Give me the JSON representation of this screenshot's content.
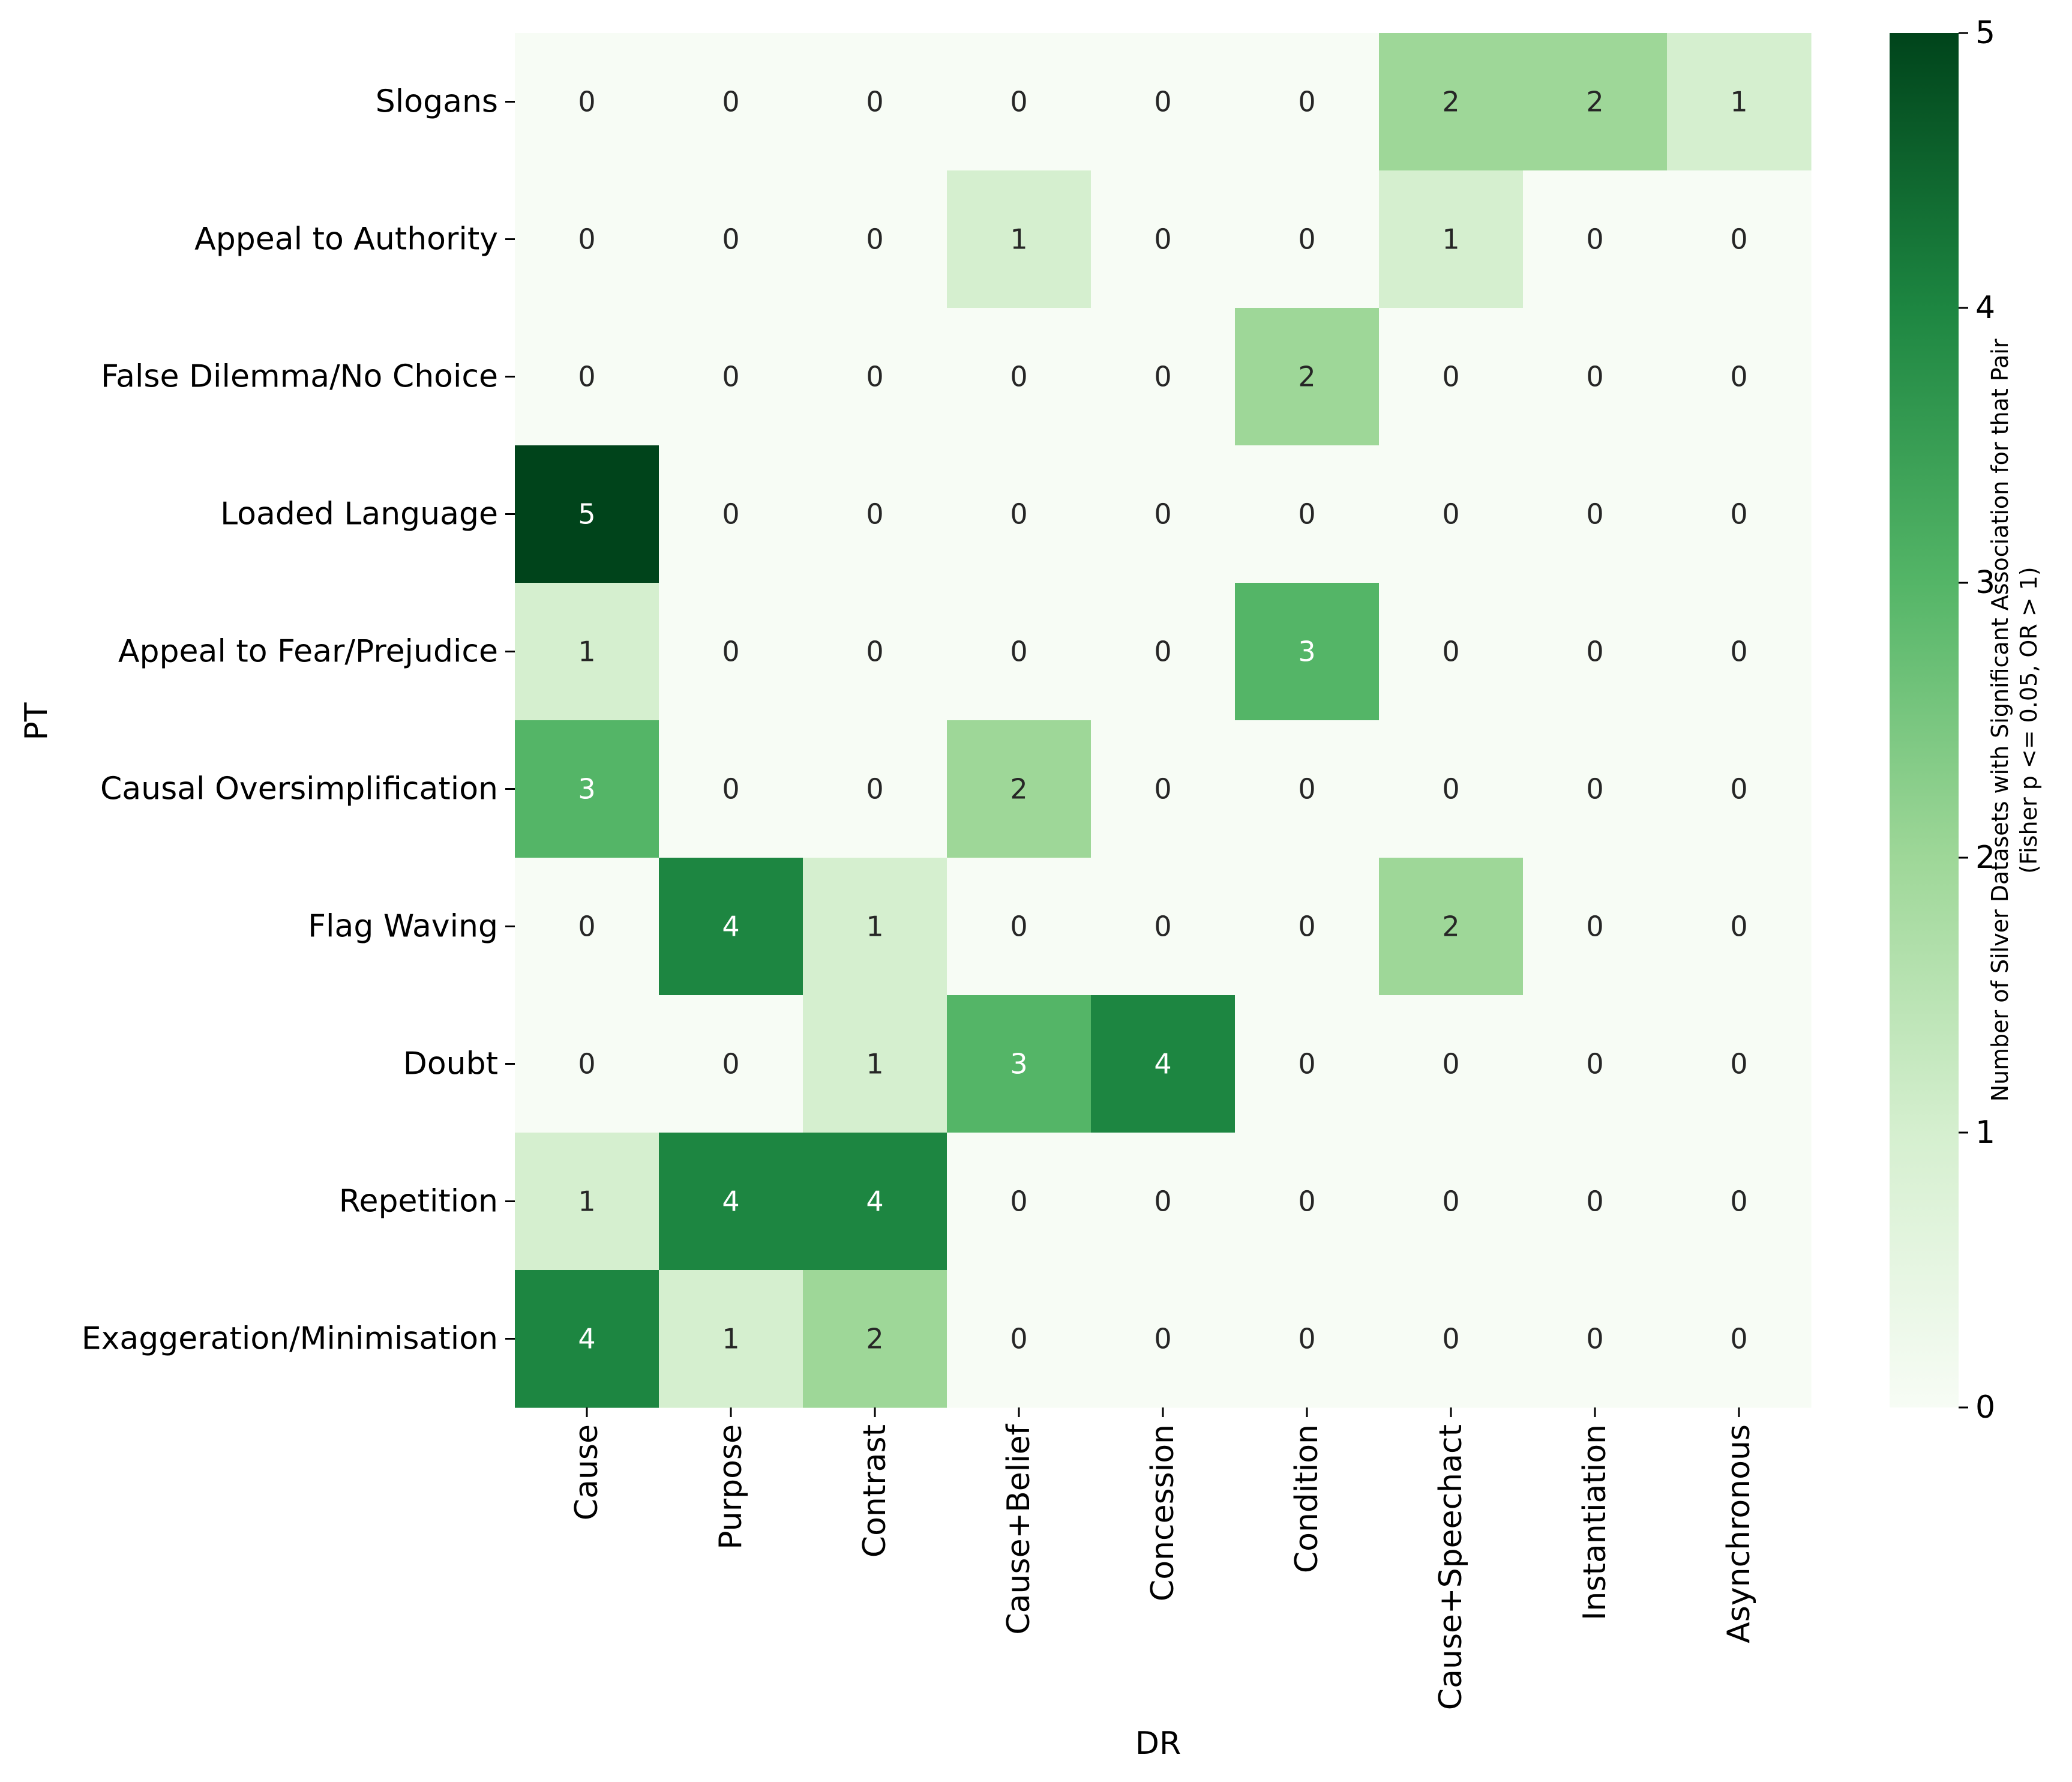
{
  "chart_data": {
    "type": "heatmap",
    "xlabel": "DR",
    "ylabel": "PT",
    "x_categories": [
      "Cause",
      "Purpose",
      "Contrast",
      "Cause+Belief",
      "Concession",
      "Condition",
      "Cause+Speechact",
      "Instantiation",
      "Asynchronous"
    ],
    "y_categories": [
      "Slogans",
      "Appeal to Authority",
      "False Dilemma/No Choice",
      "Loaded Language",
      "Appeal to Fear/Prejudice",
      "Causal Oversimplification",
      "Flag Waving",
      "Doubt",
      "Repetition",
      "Exaggeration/Minimisation"
    ],
    "values": [
      [
        0,
        0,
        0,
        0,
        0,
        0,
        2,
        2,
        1
      ],
      [
        0,
        0,
        0,
        1,
        0,
        0,
        1,
        0,
        0
      ],
      [
        0,
        0,
        0,
        0,
        0,
        2,
        0,
        0,
        0
      ],
      [
        5,
        0,
        0,
        0,
        0,
        0,
        0,
        0,
        0
      ],
      [
        1,
        0,
        0,
        0,
        0,
        3,
        0,
        0,
        0
      ],
      [
        3,
        0,
        0,
        2,
        0,
        0,
        0,
        0,
        0
      ],
      [
        0,
        4,
        1,
        0,
        0,
        0,
        2,
        0,
        0
      ],
      [
        0,
        0,
        1,
        3,
        4,
        0,
        0,
        0,
        0
      ],
      [
        1,
        4,
        4,
        0,
        0,
        0,
        0,
        0,
        0
      ],
      [
        4,
        1,
        2,
        0,
        0,
        0,
        0,
        0,
        0
      ]
    ],
    "colorbar": {
      "label_line1": "Number of Silver Datasets with Significant Association for that Pair",
      "label_line2": "(Fisher p <= 0.05, OR > 1)",
      "ticks": [
        0,
        1,
        2,
        3,
        4,
        5
      ],
      "range": [
        0,
        5
      ],
      "colors": [
        "#f7fcf5",
        "#d5efcf",
        "#9ed798",
        "#54b567",
        "#1d8641",
        "#00441b"
      ]
    }
  }
}
